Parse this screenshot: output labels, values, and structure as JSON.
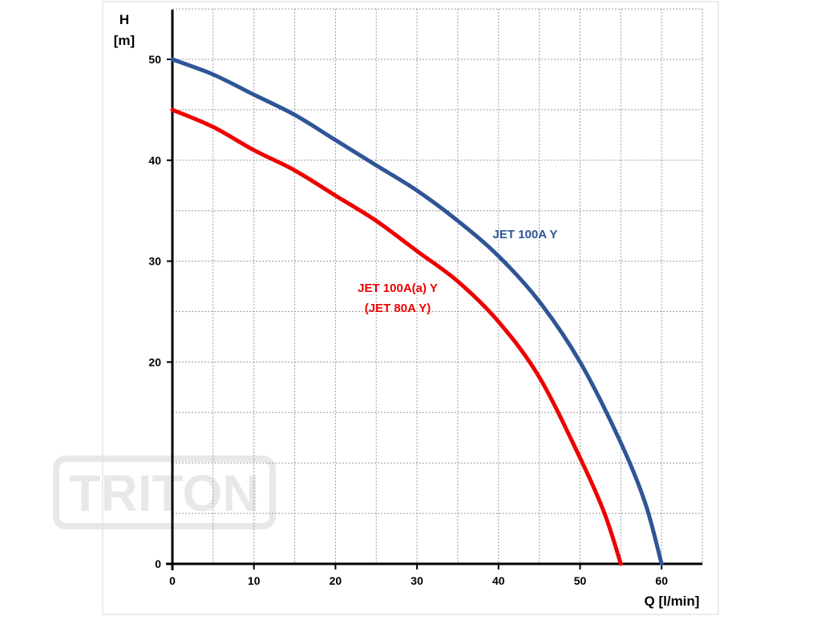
{
  "chart_data": {
    "type": "line",
    "title": "",
    "xlabel": "Q [l/min]",
    "ylabel_line1": "H",
    "ylabel_line2": "[m]",
    "xlim": [
      0,
      65
    ],
    "ylim": [
      0,
      55
    ],
    "x_ticks": [
      0,
      10,
      20,
      30,
      40,
      50,
      60
    ],
    "y_ticks": [
      0,
      20,
      30,
      40,
      50
    ],
    "x_minor_grid": [
      5,
      15,
      25,
      35,
      45,
      55,
      65
    ],
    "y_minor_grid": [
      5,
      10,
      15,
      25,
      35,
      45,
      55
    ],
    "grid": true,
    "series": [
      {
        "name": "JET 100A Y",
        "color": "#2f5597",
        "x": [
          0,
          5,
          10,
          15,
          20,
          25,
          30,
          35,
          40,
          45,
          50,
          55,
          58,
          60
        ],
        "y": [
          50,
          48.5,
          46.5,
          44.5,
          42,
          39.5,
          37,
          34,
          30.5,
          26,
          20,
          12,
          6,
          0
        ]
      },
      {
        "name": "JET 100A(a) Y",
        "label_line2": "(JET 80A Y)",
        "color": "#ee0000",
        "x": [
          0,
          5,
          10,
          15,
          20,
          25,
          30,
          35,
          40,
          45,
          50,
          53,
          55
        ],
        "y": [
          45,
          43.3,
          41,
          39,
          36.5,
          34,
          31,
          28,
          24,
          18.5,
          10.5,
          5,
          0
        ]
      }
    ]
  },
  "watermark": "TRITON"
}
